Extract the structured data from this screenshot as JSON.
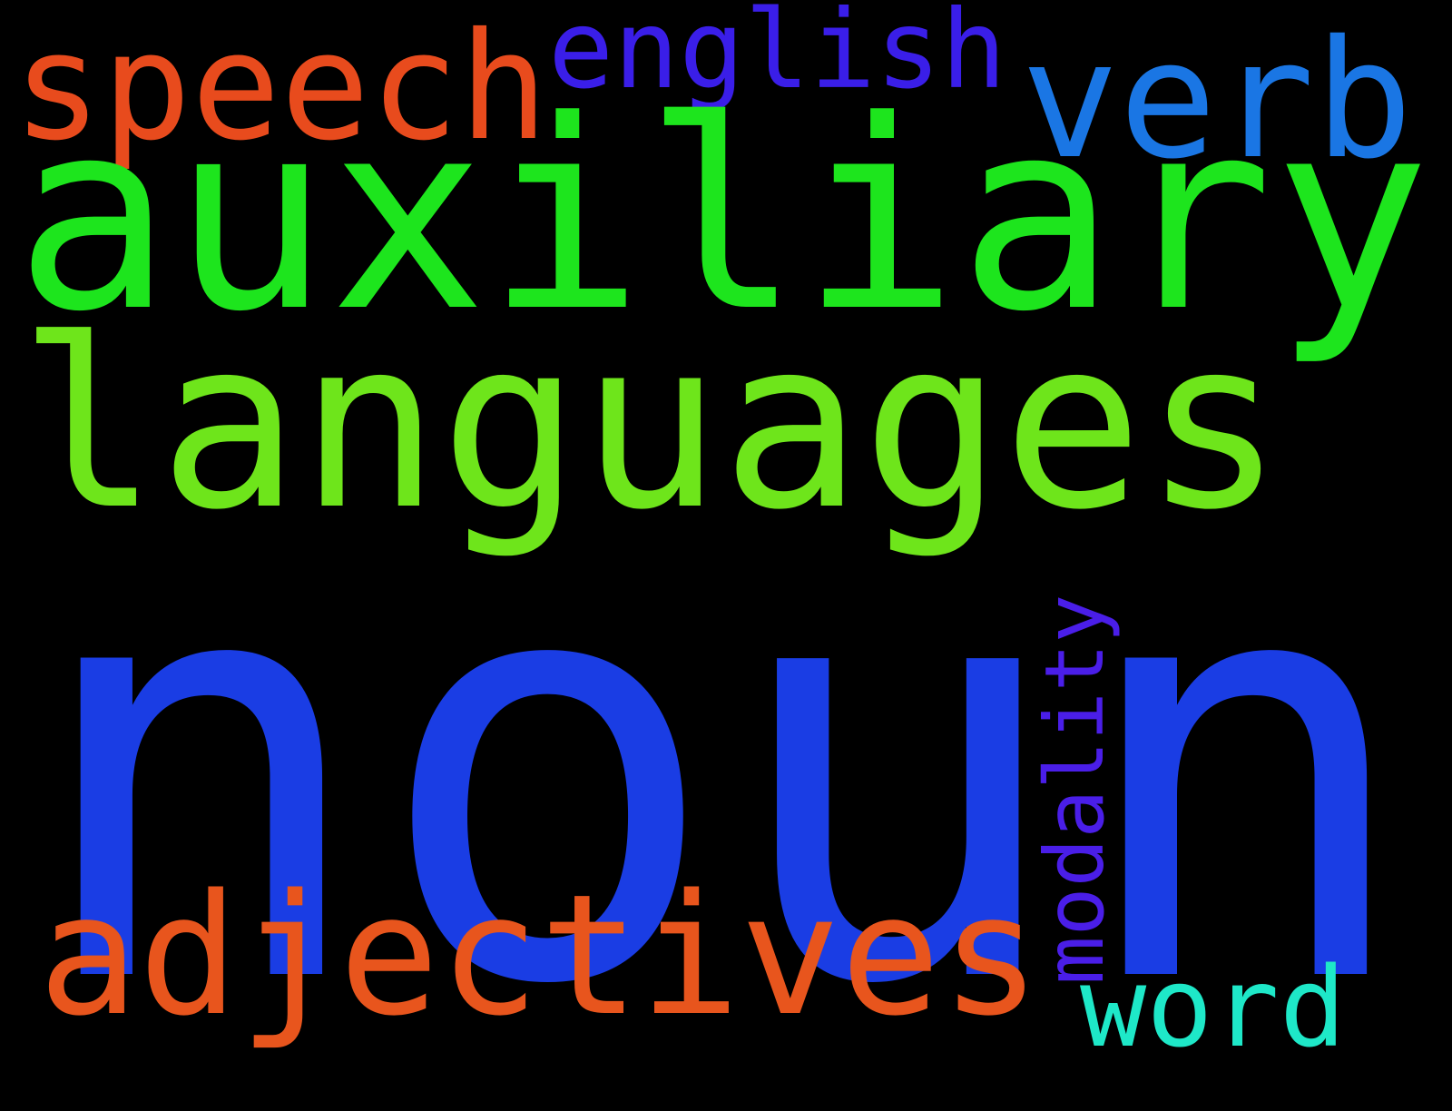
{
  "words": [
    {
      "id": "noun",
      "text": "noun",
      "color": "#1a3de4",
      "orientation": "horizontal"
    },
    {
      "id": "auxiliary",
      "text": "auxiliary",
      "color": "#1de51d",
      "orientation": "horizontal"
    },
    {
      "id": "languages",
      "text": "languages",
      "color": "#6ee51b",
      "orientation": "horizontal"
    },
    {
      "id": "adjectives",
      "text": "adjectives",
      "color": "#e8551d",
      "orientation": "horizontal"
    },
    {
      "id": "speech",
      "text": "speech",
      "color": "#e84b1d",
      "orientation": "horizontal"
    },
    {
      "id": "english",
      "text": "english",
      "color": "#3a1ee8",
      "orientation": "horizontal"
    },
    {
      "id": "verb",
      "text": "verb",
      "color": "#1a76e4",
      "orientation": "horizontal"
    },
    {
      "id": "modality",
      "text": "modality",
      "color": "#4a1ee8",
      "orientation": "vertical"
    },
    {
      "id": "word",
      "text": "word",
      "color": "#1ee8c8",
      "orientation": "horizontal"
    }
  ]
}
